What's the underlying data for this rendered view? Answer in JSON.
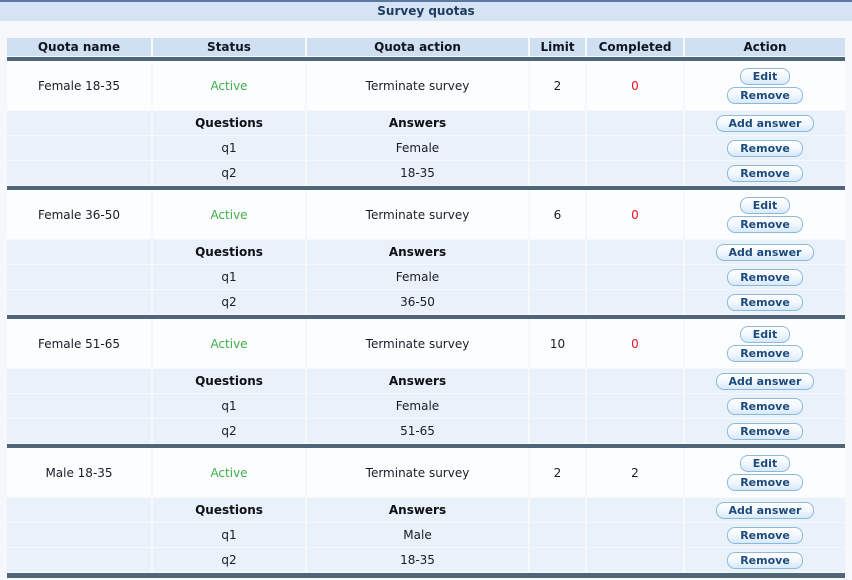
{
  "title": "Survey quotas",
  "table": {
    "columns": [
      "Quota name",
      "Status",
      "Quota action",
      "Limit",
      "Completed",
      "Action"
    ],
    "sub_headers": {
      "questions": "Questions",
      "answers": "Answers"
    },
    "buttons": {
      "edit": "Edit",
      "remove": "Remove",
      "add_answer": "Add answer"
    },
    "quotas": [
      {
        "name": "Female 18-35",
        "status": "Active",
        "action": "Terminate survey",
        "limit": "2",
        "completed": "0",
        "completed_alert": true,
        "members": [
          {
            "question": "q1",
            "answer": "Female"
          },
          {
            "question": "q2",
            "answer": "18-35"
          }
        ]
      },
      {
        "name": "Female 36-50",
        "status": "Active",
        "action": "Terminate survey",
        "limit": "6",
        "completed": "0",
        "completed_alert": true,
        "members": [
          {
            "question": "q1",
            "answer": "Female"
          },
          {
            "question": "q2",
            "answer": "36-50"
          }
        ]
      },
      {
        "name": "Female 51-65",
        "status": "Active",
        "action": "Terminate survey",
        "limit": "10",
        "completed": "0",
        "completed_alert": true,
        "members": [
          {
            "question": "q1",
            "answer": "Female"
          },
          {
            "question": "q2",
            "answer": "51-65"
          }
        ]
      },
      {
        "name": "Male 18-35",
        "status": "Active",
        "action": "Terminate survey",
        "limit": "2",
        "completed": "2",
        "completed_alert": false,
        "members": [
          {
            "question": "q1",
            "answer": "Male"
          },
          {
            "question": "q2",
            "answer": "18-35"
          }
        ]
      }
    ]
  },
  "colors": {
    "active_green": "#3fb049",
    "alert_red": "#ee1122"
  }
}
